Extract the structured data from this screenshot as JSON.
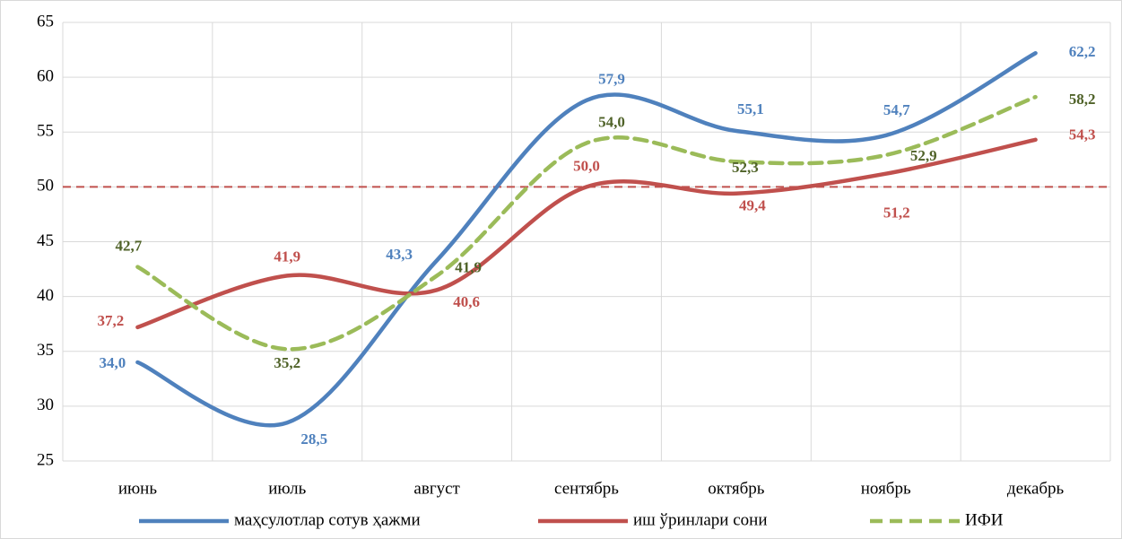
{
  "chart_data": {
    "type": "line",
    "categories": [
      "июнь",
      "июль",
      "август",
      "сентябрь",
      "октябрь",
      "ноябрь",
      "декабрь"
    ],
    "series": [
      {
        "name": "маҳсулотлар сотув ҳажми",
        "color": "#4f81bd",
        "dash": false,
        "values": [
          34.0,
          28.5,
          43.3,
          57.9,
          55.1,
          54.7,
          62.2
        ],
        "value_labels": [
          "34,0",
          "28,5",
          "43,3",
          "57,9",
          "55,1",
          "54,7",
          "62,2"
        ]
      },
      {
        "name": "иш ўринлари сони",
        "color": "#c0504d",
        "dash": false,
        "values": [
          37.2,
          41.9,
          40.6,
          50.0,
          49.4,
          51.2,
          54.3
        ],
        "value_labels": [
          "37,2",
          "41,9",
          "40,6",
          "50,0",
          "49,4",
          "51,2",
          "54,3"
        ]
      },
      {
        "name": "ИФИ",
        "color": "#9bbb59",
        "dash": true,
        "label_color": "#4f6228",
        "values": [
          42.7,
          35.2,
          41.9,
          54.0,
          52.3,
          52.9,
          58.2
        ],
        "value_labels": [
          "42,7",
          "35,2",
          "41,9",
          "54,0",
          "52,3",
          "52,9",
          "58,2"
        ]
      }
    ],
    "ylim": [
      25,
      65
    ],
    "yticks": [
      25,
      30,
      35,
      40,
      45,
      50,
      55,
      60,
      65
    ],
    "grid": true,
    "smooth": true,
    "legend": "bottom",
    "reference_line": {
      "value": 50,
      "color": "#c0504d"
    }
  }
}
